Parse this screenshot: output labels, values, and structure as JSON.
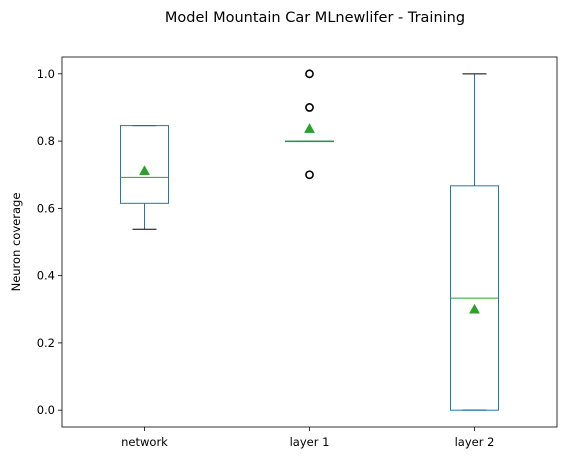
{
  "chart_data": {
    "type": "box",
    "title": "Model Mountain Car MLnewlifer - Training",
    "xlabel": "",
    "ylabel": "Neuron coverage",
    "ylim": [
      -0.05,
      1.05
    ],
    "yticks": [
      "0.0",
      "0.2",
      "0.4",
      "0.6",
      "0.8",
      "1.0"
    ],
    "grid": false,
    "categories": [
      "network",
      "layer 1",
      "layer 2"
    ],
    "boxes": [
      {
        "name": "network",
        "whisker_low": 0.538,
        "q1": 0.615,
        "median": 0.692,
        "q3": 0.846,
        "whisker_high": 0.846,
        "mean": 0.712,
        "outliers": []
      },
      {
        "name": "layer 1",
        "whisker_low": 0.8,
        "q1": 0.8,
        "median": 0.8,
        "q3": 0.8,
        "whisker_high": 0.8,
        "mean": 0.837,
        "outliers": [
          0.7,
          0.9,
          1.0
        ]
      },
      {
        "name": "layer 2",
        "whisker_low": 0.0,
        "q1": 0.0,
        "median": 0.333,
        "q3": 0.667,
        "whisker_high": 1.0,
        "mean": 0.3,
        "outliers": []
      }
    ],
    "colors": {
      "box": "#1f77b4",
      "median": "#2ca02c",
      "mean": "#2ca02c",
      "whisker_cap": "#000000",
      "outlier": "#000000"
    }
  }
}
